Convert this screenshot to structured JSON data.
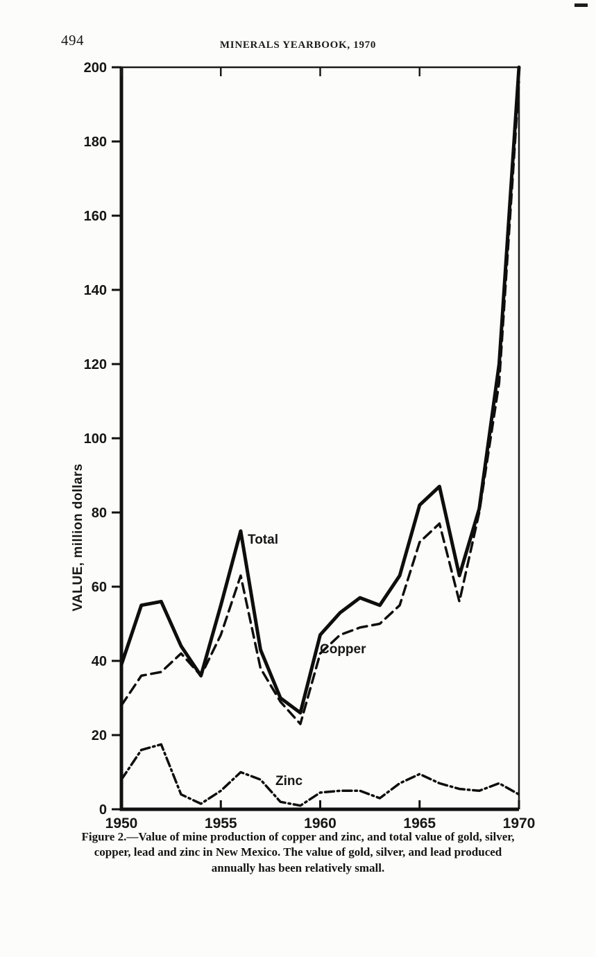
{
  "page": {
    "number": "494",
    "header": "MINERALS YEARBOOK, 1970"
  },
  "caption": {
    "lines": [
      "Figure 2.—Value of mine production of copper and zinc, and total value of gold, silver,",
      "copper, lead and zinc in New Mexico. The value of gold, silver, and lead produced",
      "annually has been relatively small."
    ]
  },
  "chart_data": {
    "type": "line",
    "title": "",
    "xlabel": "",
    "ylabel": "VALUE, million dollars",
    "xlim": [
      1950,
      1970
    ],
    "ylim": [
      0,
      200
    ],
    "x_ticks": [
      1950,
      1955,
      1960,
      1965,
      1970
    ],
    "y_ticks": [
      0,
      20,
      40,
      60,
      80,
      100,
      120,
      140,
      160,
      180,
      200
    ],
    "grid": false,
    "legend": "inline-labels",
    "x": [
      1950,
      1951,
      1952,
      1953,
      1954,
      1955,
      1956,
      1957,
      1958,
      1959,
      1960,
      1961,
      1962,
      1963,
      1964,
      1965,
      1966,
      1967,
      1968,
      1969,
      1970
    ],
    "series": [
      {
        "name": "Total",
        "style": "solid",
        "values": [
          39,
          55,
          56,
          44,
          36,
          55,
          75,
          43,
          30,
          26,
          47,
          53,
          57,
          55,
          63,
          82,
          87,
          63,
          81,
          120,
          200
        ]
      },
      {
        "name": "Copper",
        "style": "dashed",
        "values": [
          28,
          36,
          37,
          42,
          36,
          47,
          63,
          38,
          29,
          23,
          42,
          47,
          49,
          50,
          55,
          72,
          77,
          56,
          80,
          115,
          196
        ]
      },
      {
        "name": "Zinc",
        "style": "dashdot",
        "values": [
          8,
          16,
          17.5,
          4,
          1.5,
          5,
          10,
          8,
          2,
          1,
          4.5,
          5,
          5,
          3,
          7,
          9.5,
          7,
          5.5,
          5,
          7,
          4
        ]
      }
    ]
  }
}
